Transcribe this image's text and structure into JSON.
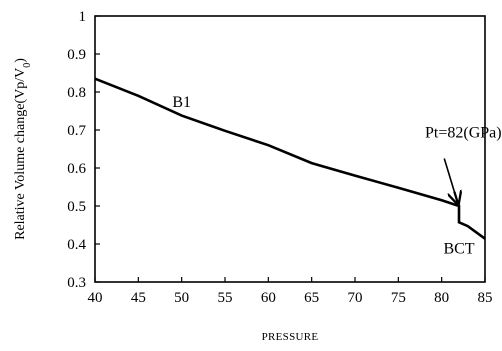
{
  "chart_data": {
    "type": "line",
    "title": "",
    "xlabel": "PRESSURE",
    "ylabel_main": "Relative Volume change(Vp/V",
    "ylabel_sub": "0",
    "ylabel_close": ")",
    "xlim": [
      40,
      85
    ],
    "ylim": [
      0.3,
      1.0
    ],
    "xticks": [
      "40",
      "45",
      "50",
      "55",
      "60",
      "65",
      "70",
      "75",
      "80",
      "85"
    ],
    "yticks": [
      "0.3",
      "0.4",
      "0.5",
      "0.6",
      "0.7",
      "0.8",
      "0.9",
      "1"
    ],
    "grid": false,
    "series": [
      {
        "color": "#000000",
        "x": [
          40,
          45,
          50,
          55,
          60,
          65,
          70,
          75,
          80,
          82,
          82,
          83,
          85
        ],
        "y": [
          0.835,
          0.79,
          0.738,
          0.698,
          0.66,
          0.613,
          0.58,
          0.548,
          0.515,
          0.5,
          0.457,
          0.447,
          0.414
        ]
      }
    ],
    "annotations": [
      {
        "text": "B1",
        "x": 50,
        "y": 0.76
      },
      {
        "text": "Pt=82(GPa)",
        "x": 82.5,
        "y": 0.68
      },
      {
        "text": "BCT",
        "x": 82,
        "y": 0.375
      }
    ],
    "arrow": {
      "from": [
        80.3,
        0.625
      ],
      "to": [
        81.9,
        0.505
      ]
    }
  }
}
